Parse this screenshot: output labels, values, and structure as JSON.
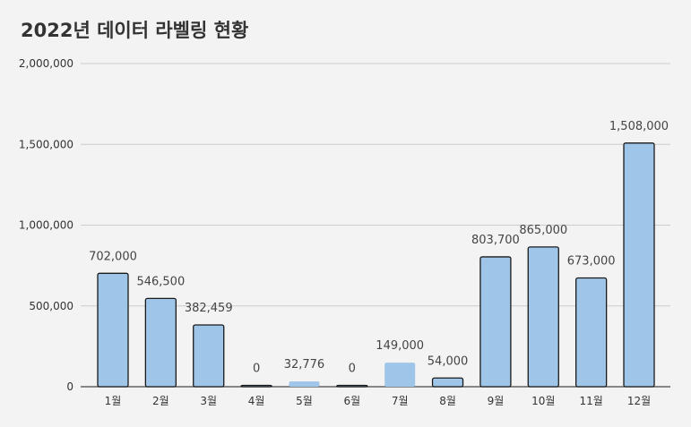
{
  "colors": {
    "bar_fill": "#9fc5e8",
    "bar_stroke": "#1a1a1a",
    "gridline": "#cccccc",
    "text": "#333333",
    "background": "#f3f3f3"
  },
  "chart_data": {
    "type": "bar",
    "title": "2022년 데이터 라벨링 현황",
    "xlabel": "",
    "ylabel": "",
    "ylim": [
      0,
      2000000
    ],
    "yticks": [
      0,
      500000,
      1000000,
      1500000,
      2000000
    ],
    "ytick_labels": [
      "0",
      "500,000",
      "1,000,000",
      "1,500,000",
      "2,000,000"
    ],
    "grid": true,
    "legend": "none",
    "categories": [
      "1월",
      "2월",
      "3월",
      "4월",
      "5월",
      "6월",
      "7월",
      "8월",
      "9월",
      "10월",
      "11월",
      "12월"
    ],
    "values": [
      702000,
      546500,
      382459,
      0,
      32776,
      0,
      149000,
      54000,
      803700,
      865000,
      673000,
      1508000
    ],
    "data_labels": [
      "702,000",
      "546,500",
      "382,459",
      "0",
      "32,776",
      "0",
      "149,000",
      "54,000",
      "803,700",
      "865,000",
      "673,000",
      "1,508,000"
    ]
  }
}
